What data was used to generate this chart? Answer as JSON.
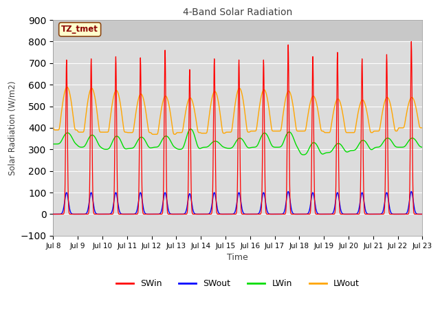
{
  "title": "4-Band Solar Radiation",
  "xlabel": "Time",
  "ylabel": "Solar Radiation (W/m2)",
  "ylim": [
    -100,
    900
  ],
  "yticks": [
    -100,
    0,
    100,
    200,
    300,
    400,
    500,
    600,
    700,
    800,
    900
  ],
  "annotation_text": "TZ_tmet",
  "annotation_color": "#8B0000",
  "annotation_bg": "#FFFFCC",
  "annotation_border": "#8B4513",
  "plot_bg": "#DCDCDC",
  "top_strip_bg": "#C8C8C8",
  "grid_color": "white",
  "fig_bg": "#FFFFFF",
  "colors": {
    "SWin": "#FF0000",
    "SWout": "#0000FF",
    "LWin": "#00DD00",
    "LWout": "#FFA500"
  },
  "SWin_peaks": [
    715,
    720,
    730,
    725,
    760,
    670,
    720,
    715,
    715,
    785,
    730,
    750,
    720,
    740,
    800
  ],
  "SWout_peaks": [
    100,
    100,
    100,
    100,
    100,
    95,
    100,
    100,
    100,
    105,
    100,
    100,
    100,
    100,
    105
  ],
  "LWin_base": [
    325,
    310,
    300,
    305,
    310,
    300,
    310,
    305,
    310,
    310,
    275,
    285,
    295,
    310,
    310
  ],
  "LWin_amp": [
    55,
    60,
    65,
    55,
    55,
    100,
    30,
    50,
    70,
    75,
    60,
    45,
    50,
    45,
    45
  ],
  "LWout_night": [
    390,
    380,
    380,
    378,
    370,
    378,
    375,
    380,
    385,
    385,
    385,
    378,
    378,
    385,
    400
  ],
  "LWout_day": [
    590,
    585,
    575,
    558,
    548,
    540,
    570,
    585,
    578,
    572,
    548,
    535,
    530,
    542,
    542
  ],
  "n_days": 15,
  "start_day": 8
}
